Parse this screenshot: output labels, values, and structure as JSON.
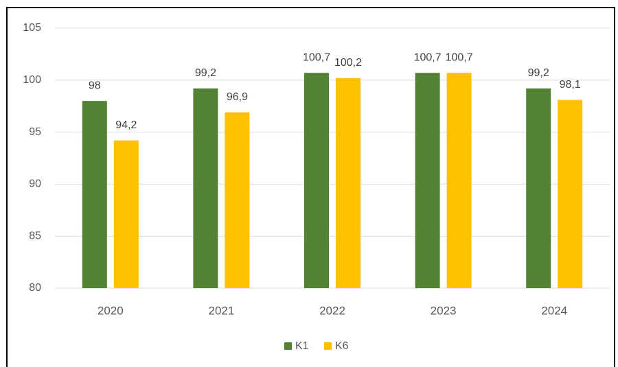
{
  "chart_data": {
    "type": "bar",
    "categories": [
      "2020",
      "2021",
      "2022",
      "2023",
      "2024"
    ],
    "series": [
      {
        "name": "K1",
        "color": "#548235",
        "values": [
          98,
          99.2,
          100.7,
          100.7,
          99.2
        ],
        "value_labels": [
          "98",
          "99,2",
          "100,7",
          "100,7",
          "99,2"
        ]
      },
      {
        "name": "K6",
        "color": "#ffc000",
        "values": [
          94.2,
          96.9,
          100.2,
          100.7,
          98.1
        ],
        "value_labels": [
          "94,2",
          "96,9",
          "100,2",
          "100,7",
          "98,1"
        ]
      }
    ],
    "ylim": [
      80,
      105
    ],
    "yticks": [
      80,
      85,
      90,
      95,
      100,
      105
    ],
    "grid": true,
    "legend": "bottom"
  }
}
